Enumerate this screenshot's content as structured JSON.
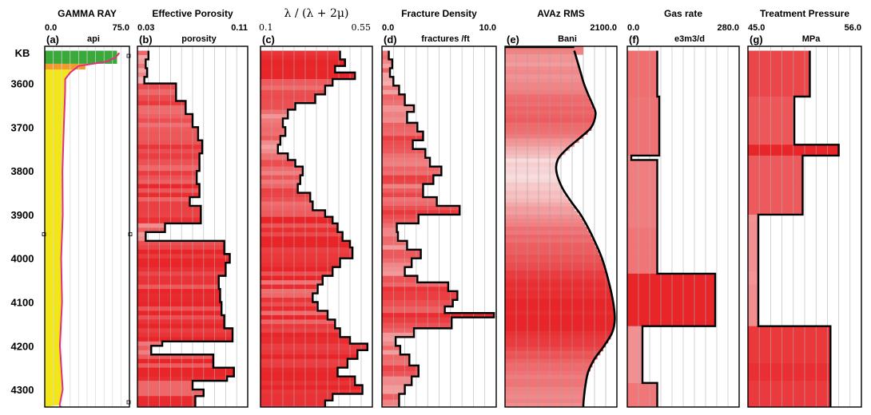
{
  "chart_data": {
    "type": "well-log",
    "depth_axis": {
      "top_label": "KB",
      "ticks": [
        3600,
        3700,
        3800,
        3900,
        4000,
        4100,
        4200,
        4300
      ],
      "range": [
        3515,
        4340
      ]
    },
    "colors": {
      "red": "#e8262a",
      "pink": "#f6b8b8",
      "gamma_fill": "#f2e619",
      "gamma_line": "#e0307f",
      "green": "#3aa83a",
      "orange": "#f29a2e"
    },
    "tracks": [
      {
        "panel": "(a)",
        "title": "GAMMA RAY",
        "unit": "api",
        "min_label": "0.0",
        "max_label": "75.0",
        "xlim": [
          0,
          75
        ],
        "style": "gamma",
        "samples": [
          [
            3530,
            66
          ],
          [
            3540,
            63
          ],
          [
            3550,
            55
          ],
          [
            3560,
            30
          ],
          [
            3575,
            22
          ],
          [
            3590,
            18
          ],
          [
            3620,
            17
          ],
          [
            3700,
            16
          ],
          [
            3800,
            15
          ],
          [
            3900,
            15
          ],
          [
            4000,
            14
          ],
          [
            4100,
            15
          ],
          [
            4200,
            14
          ],
          [
            4300,
            15
          ],
          [
            4335,
            14
          ]
        ],
        "caps": [
          {
            "from": 3525,
            "to": 3555,
            "color": "#3aa83a"
          },
          {
            "from": 3555,
            "to": 3568,
            "color": "#f29a2e"
          }
        ]
      },
      {
        "panel": "(b)",
        "title": "Effective Porosity",
        "unit": "porosity",
        "min_label": "0.03",
        "max_label": "0.11",
        "xlim": [
          0.03,
          0.11
        ],
        "style": "step",
        "steps": [
          [
            3525,
            0.038
          ],
          [
            3545,
            0.036
          ],
          [
            3565,
            0.037
          ],
          [
            3585,
            0.035
          ],
          [
            3600,
            0.058
          ],
          [
            3640,
            0.065
          ],
          [
            3670,
            0.07
          ],
          [
            3700,
            0.074
          ],
          [
            3730,
            0.077
          ],
          [
            3760,
            0.075
          ],
          [
            3800,
            0.073
          ],
          [
            3830,
            0.075
          ],
          [
            3860,
            0.068
          ],
          [
            3880,
            0.076
          ],
          [
            3920,
            0.05
          ],
          [
            3940,
            0.036
          ],
          [
            3960,
            0.093
          ],
          [
            3990,
            0.097
          ],
          [
            4010,
            0.094
          ],
          [
            4040,
            0.089
          ],
          [
            4070,
            0.09
          ],
          [
            4100,
            0.091
          ],
          [
            4130,
            0.093
          ],
          [
            4160,
            0.099
          ],
          [
            4190,
            0.048
          ],
          [
            4200,
            0.04
          ],
          [
            4220,
            0.085
          ],
          [
            4250,
            0.1
          ],
          [
            4270,
            0.095
          ],
          [
            4280,
            0.07
          ],
          [
            4300,
            0.078
          ],
          [
            4315,
            0.072
          ]
        ]
      },
      {
        "panel": "(c)",
        "title": "λ / (λ + 2μ)",
        "unit": "",
        "min_label": "0.1",
        "max_label": "0.55",
        "xlim": [
          0.1,
          0.55
        ],
        "style": "step",
        "steps": [
          [
            3525,
            0.42
          ],
          [
            3545,
            0.44
          ],
          [
            3560,
            0.4
          ],
          [
            3575,
            0.48
          ],
          [
            3590,
            0.39
          ],
          [
            3605,
            0.36
          ],
          [
            3625,
            0.32
          ],
          [
            3645,
            0.24
          ],
          [
            3660,
            0.21
          ],
          [
            3680,
            0.19
          ],
          [
            3700,
            0.2
          ],
          [
            3720,
            0.18
          ],
          [
            3740,
            0.17
          ],
          [
            3760,
            0.21
          ],
          [
            3775,
            0.24
          ],
          [
            3790,
            0.27
          ],
          [
            3810,
            0.26
          ],
          [
            3830,
            0.25
          ],
          [
            3850,
            0.3
          ],
          [
            3870,
            0.31
          ],
          [
            3890,
            0.36
          ],
          [
            3905,
            0.39
          ],
          [
            3920,
            0.41
          ],
          [
            3940,
            0.43
          ],
          [
            3960,
            0.46
          ],
          [
            3975,
            0.47
          ],
          [
            4000,
            0.42
          ],
          [
            4020,
            0.39
          ],
          [
            4040,
            0.35
          ],
          [
            4060,
            0.33
          ],
          [
            4080,
            0.31
          ],
          [
            4100,
            0.33
          ],
          [
            4120,
            0.37
          ],
          [
            4140,
            0.4
          ],
          [
            4160,
            0.42
          ],
          [
            4180,
            0.46
          ],
          [
            4195,
            0.53
          ],
          [
            4210,
            0.49
          ],
          [
            4230,
            0.45
          ],
          [
            4250,
            0.41
          ],
          [
            4270,
            0.48
          ],
          [
            4290,
            0.51
          ],
          [
            4310,
            0.39
          ],
          [
            4325,
            0.36
          ]
        ]
      },
      {
        "panel": "(d)",
        "title": "Fracture Density",
        "unit": "fractures /ft",
        "min_label": "0.0",
        "max_label": "10.0",
        "xlim": [
          0,
          10
        ],
        "style": "step",
        "steps": [
          [
            3525,
            0.6
          ],
          [
            3545,
            0.9
          ],
          [
            3565,
            0.7
          ],
          [
            3585,
            1.0
          ],
          [
            3605,
            1.5
          ],
          [
            3625,
            2.0
          ],
          [
            3650,
            2.8
          ],
          [
            3665,
            2.2
          ],
          [
            3690,
            3.1
          ],
          [
            3710,
            3.6
          ],
          [
            3730,
            2.7
          ],
          [
            3750,
            3.8
          ],
          [
            3770,
            4.2
          ],
          [
            3790,
            5.2
          ],
          [
            3810,
            4.5
          ],
          [
            3830,
            3.6
          ],
          [
            3860,
            4.8
          ],
          [
            3880,
            6.8
          ],
          [
            3900,
            3.2
          ],
          [
            3920,
            1.3
          ],
          [
            3940,
            1.4
          ],
          [
            3960,
            2.2
          ],
          [
            3980,
            3.4
          ],
          [
            4000,
            2.6
          ],
          [
            4020,
            2.0
          ],
          [
            4040,
            3.1
          ],
          [
            4055,
            5.8
          ],
          [
            4075,
            6.6
          ],
          [
            4095,
            6.2
          ],
          [
            4110,
            5.5
          ],
          [
            4125,
            9.8
          ],
          [
            4135,
            6.1
          ],
          [
            4160,
            2.8
          ],
          [
            4180,
            1.2
          ],
          [
            4200,
            1.6
          ],
          [
            4220,
            2.4
          ],
          [
            4245,
            3.2
          ],
          [
            4270,
            2.6
          ],
          [
            4290,
            2.0
          ],
          [
            4310,
            1.5
          ]
        ]
      },
      {
        "panel": "(e)",
        "title": "AVAz RMS",
        "unit": "Bani",
        "min_label": "",
        "max_label": "2100.0",
        "xlim": [
          0,
          2100
        ],
        "style": "smooth",
        "samples": [
          [
            3525,
            1300
          ],
          [
            3550,
            1360
          ],
          [
            3575,
            1420
          ],
          [
            3600,
            1480
          ],
          [
            3625,
            1560
          ],
          [
            3650,
            1650
          ],
          [
            3670,
            1700
          ],
          [
            3700,
            1620
          ],
          [
            3725,
            1400
          ],
          [
            3750,
            1160
          ],
          [
            3770,
            1010
          ],
          [
            3790,
            960
          ],
          [
            3810,
            980
          ],
          [
            3840,
            1080
          ],
          [
            3870,
            1240
          ],
          [
            3900,
            1420
          ],
          [
            3930,
            1560
          ],
          [
            3960,
            1680
          ],
          [
            4000,
            1820
          ],
          [
            4050,
            1940
          ],
          [
            4100,
            2030
          ],
          [
            4140,
            2060
          ],
          [
            4170,
            2010
          ],
          [
            4200,
            1860
          ],
          [
            4230,
            1680
          ],
          [
            4260,
            1560
          ],
          [
            4290,
            1510
          ],
          [
            4320,
            1480
          ],
          [
            4335,
            1470
          ]
        ]
      },
      {
        "panel": "(f)",
        "title": "Gas rate",
        "unit": "e3m3/d",
        "min_label": "0.0",
        "max_label": "280.0",
        "xlim": [
          0,
          280
        ],
        "style": "step",
        "steps": [
          [
            3525,
            75
          ],
          [
            3630,
            80
          ],
          [
            3765,
            10
          ],
          [
            3775,
            75
          ],
          [
            3880,
            75
          ],
          [
            3930,
            75
          ],
          [
            4035,
            220
          ],
          [
            4155,
            38
          ],
          [
            4285,
            75
          ]
        ]
      },
      {
        "panel": "(g)",
        "title": "Treatment Pressure",
        "unit": "MPa",
        "min_label": "45.0",
        "max_label": "56.0",
        "xlim": [
          45,
          56
        ],
        "style": "step",
        "steps": [
          [
            3525,
            51.0
          ],
          [
            3630,
            49.5
          ],
          [
            3740,
            53.8
          ],
          [
            3765,
            50.3
          ],
          [
            3900,
            46.0
          ],
          [
            3915,
            46.0
          ],
          [
            4030,
            46.0
          ],
          [
            4060,
            46.0
          ],
          [
            4155,
            53.0
          ],
          [
            4240,
            53.0
          ],
          [
            4280,
            53.0
          ]
        ]
      }
    ]
  }
}
